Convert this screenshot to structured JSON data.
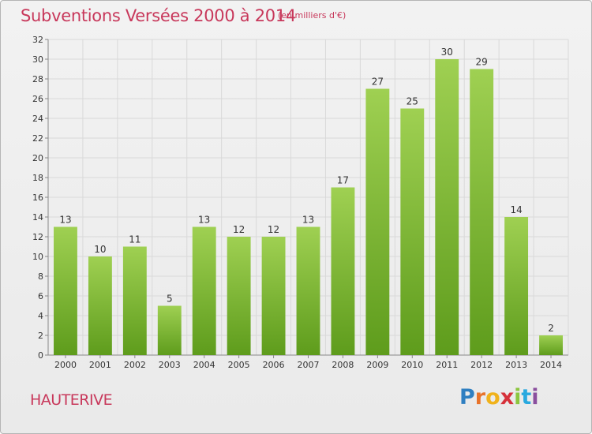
{
  "title": "Subventions Versées 2000 à 2014",
  "subtitle": "(en milliers d'€)",
  "place": "HAUTERIVE",
  "logo": {
    "letters": [
      "P",
      "r",
      "o",
      "x",
      "i",
      "t",
      "i"
    ],
    "colors": [
      "#2f7fc1",
      "#e8732a",
      "#f0b21b",
      "#d6313a",
      "#8cc63f",
      "#29a9df",
      "#8a4f9e"
    ]
  },
  "colors": {
    "title": "#c8385b",
    "bar_top": "#9fd052",
    "bar_bottom": "#5e9c1c"
  },
  "chart_data": {
    "type": "bar",
    "categories": [
      "2000",
      "2001",
      "2002",
      "2003",
      "2004",
      "2005",
      "2006",
      "2007",
      "2008",
      "2009",
      "2010",
      "2011",
      "2012",
      "2013",
      "2014"
    ],
    "values": [
      13,
      10,
      11,
      5,
      13,
      12,
      12,
      13,
      17,
      27,
      25,
      30,
      29,
      14,
      2
    ],
    "ylim": [
      0,
      32
    ],
    "yticks": [
      0,
      2,
      4,
      6,
      8,
      10,
      12,
      14,
      16,
      18,
      20,
      22,
      24,
      26,
      28,
      30,
      32
    ],
    "grid": true,
    "xlabel": "",
    "ylabel": ""
  }
}
